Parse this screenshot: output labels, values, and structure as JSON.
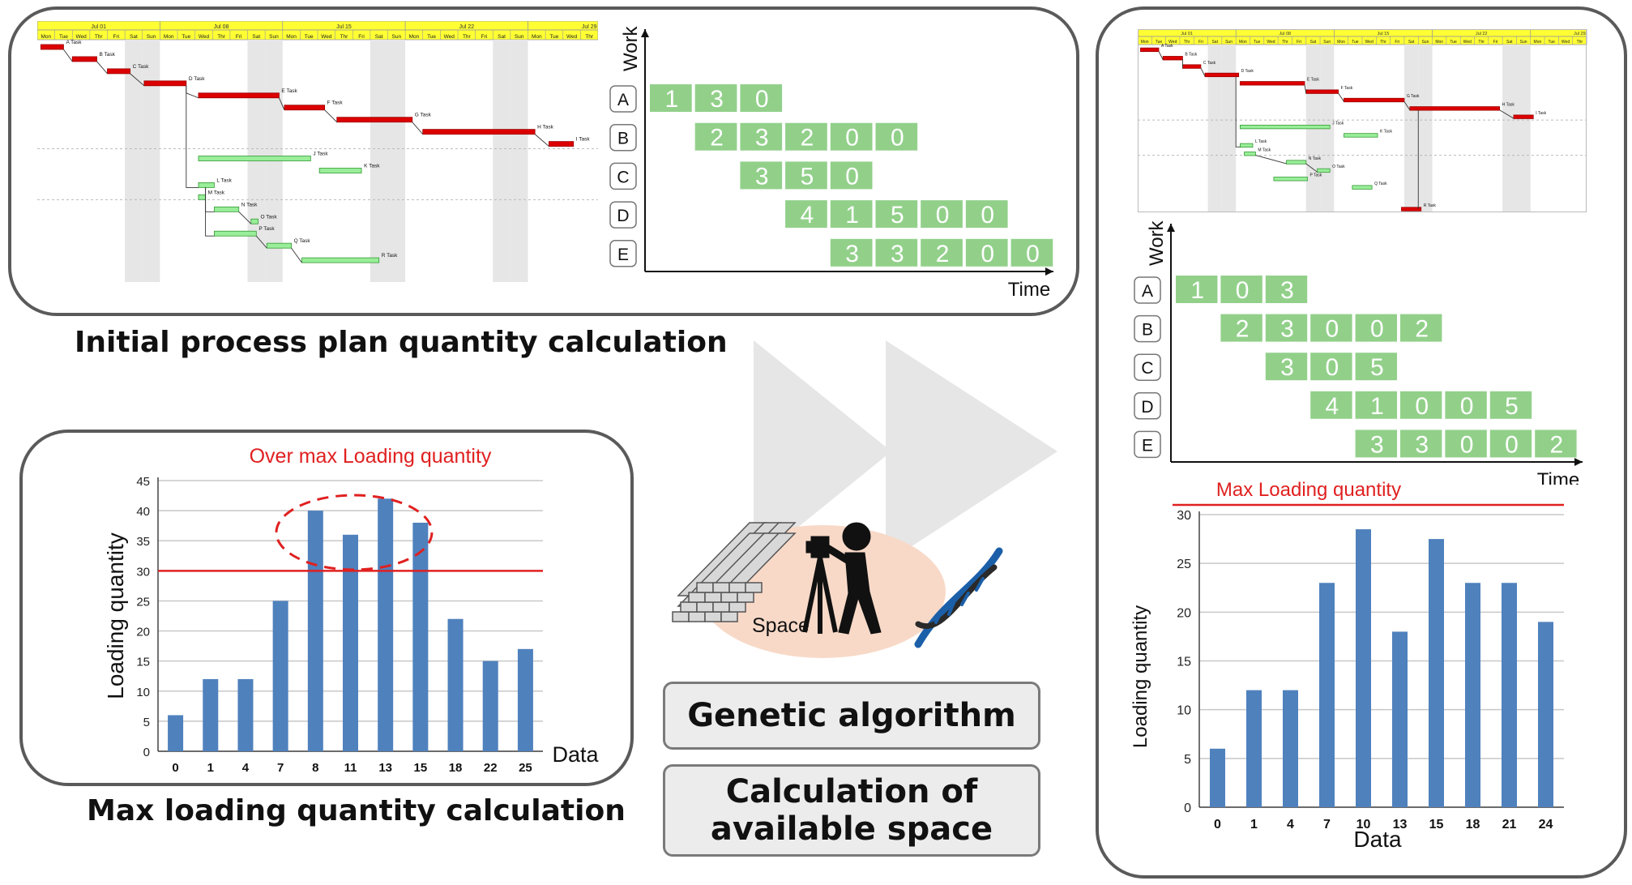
{
  "gantt": {
    "weeks": [
      "Jul 01",
      "Jul 08",
      "Jul 15",
      "Jul 22",
      "Jul 29"
    ],
    "days": [
      "Mon",
      "Tue",
      "Wed",
      "Thr",
      "Fri",
      "Sat",
      "Sun",
      "Mon",
      "Tue",
      "Wed",
      "Thr",
      "Fri",
      "Sat",
      "Sun",
      "Mon",
      "Tue",
      "Wed",
      "Thr",
      "Fri",
      "Sat",
      "Sun",
      "Mon",
      "Tue",
      "Wed",
      "Thr",
      "Fri",
      "Sat",
      "Sun",
      "Mon",
      "Tue",
      "Wed",
      "Thr"
    ],
    "tasks": [
      "A Task",
      "B Task",
      "C Task",
      "D Task",
      "E Task",
      "F Task",
      "G Task",
      "H Task",
      "I Task",
      "J Task",
      "K Task",
      "L Task",
      "M Task",
      "N Task",
      "O Task",
      "P Task",
      "Q Task",
      "R Task"
    ]
  },
  "work_chart_initial": {
    "y_axis": "Work",
    "x_axis": "Time",
    "rows": [
      {
        "label": "A",
        "values": [
          "1",
          "3",
          "0"
        ]
      },
      {
        "label": "B",
        "values": [
          "2",
          "3",
          "2",
          "0",
          "0"
        ]
      },
      {
        "label": "C",
        "values": [
          "3",
          "5",
          "0"
        ]
      },
      {
        "label": "D",
        "values": [
          "4",
          "1",
          "5",
          "0",
          "0"
        ]
      },
      {
        "label": "E",
        "values": [
          "3",
          "3",
          "2",
          "0",
          "0"
        ]
      }
    ]
  },
  "work_chart_optimized": {
    "y_axis": "Work",
    "x_axis": "Time",
    "rows": [
      {
        "label": "A",
        "values": [
          "1",
          "0",
          "3"
        ]
      },
      {
        "label": "B",
        "values": [
          "2",
          "3",
          "0",
          "0",
          "2"
        ]
      },
      {
        "label": "C",
        "values": [
          "3",
          "0",
          "5"
        ]
      },
      {
        "label": "D",
        "values": [
          "4",
          "1",
          "0",
          "0",
          "5"
        ]
      },
      {
        "label": "E",
        "values": [
          "3",
          "3",
          "0",
          "0",
          "2"
        ]
      }
    ]
  },
  "captions": {
    "initial": "Initial process plan quantity calculation",
    "max_loading": "Max loading quantity calculation"
  },
  "center": {
    "space_label": "Space",
    "genetic_button": "Genetic algorithm",
    "calc_button_line1": "Calculation of",
    "calc_button_line2": "available space"
  },
  "chart_data": [
    {
      "type": "bar",
      "ylabel": "Loading quantity",
      "xlabel": "Data",
      "categories": [
        "0",
        "1",
        "4",
        "7",
        "8",
        "11",
        "13",
        "15",
        "18",
        "22",
        "25"
      ],
      "values": [
        6,
        12,
        12,
        25,
        40,
        36,
        42,
        38,
        22,
        15,
        17
      ],
      "ylim": [
        0,
        45
      ],
      "yticks": [
        0,
        5,
        10,
        15,
        20,
        25,
        30,
        35,
        40,
        45
      ],
      "threshold": 30,
      "annotation": "Over max Loading quantity",
      "bar_color": "#4f81bd",
      "line_color": "#e02020"
    },
    {
      "type": "bar",
      "ylabel": "Loading quantity",
      "xlabel": "Data",
      "categories": [
        "0",
        "1",
        "4",
        "7",
        "10",
        "13",
        "15",
        "18",
        "21",
        "24"
      ],
      "values": [
        6,
        12,
        12,
        23,
        28.5,
        18,
        27.5,
        23,
        23,
        19
      ],
      "ylim": [
        0,
        30
      ],
      "yticks": [
        0,
        5,
        10,
        15,
        20,
        25,
        30
      ],
      "threshold": 31,
      "annotation": "Max Loading quantity",
      "bar_color": "#4f81bd",
      "line_color": "#e02020"
    }
  ]
}
